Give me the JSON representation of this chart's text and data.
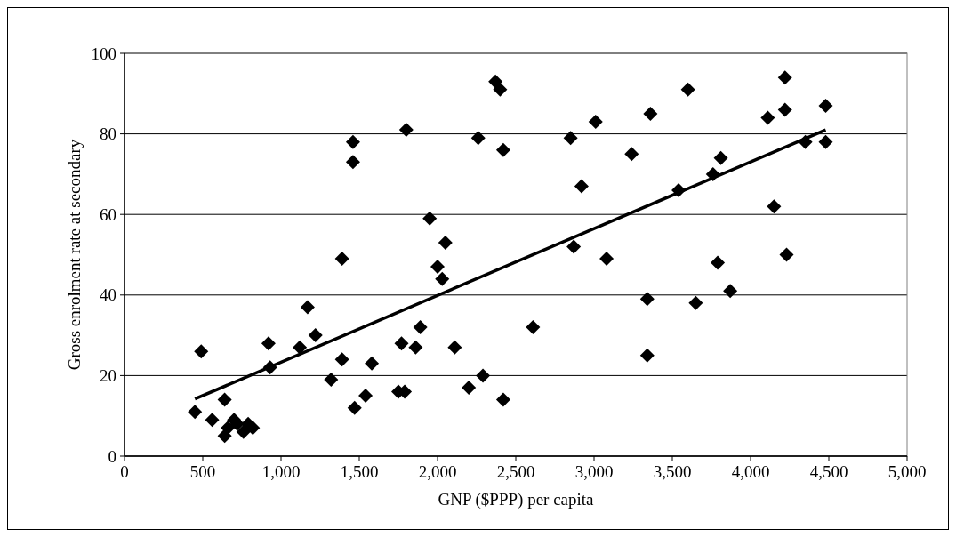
{
  "chart_data": {
    "type": "scatter",
    "xlabel": "GNP ($PPP) per capita",
    "ylabel": "Gross enrolment rate at secondary",
    "xlim": [
      0,
      5000
    ],
    "xticks": [
      {
        "value": 0,
        "label": "0"
      },
      {
        "value": 500,
        "label": "500"
      },
      {
        "value": 1000,
        "label": "1,000"
      },
      {
        "value": 1500,
        "label": "1,500"
      },
      {
        "value": 2000,
        "label": "2,000"
      },
      {
        "value": 2500,
        "label": "2,500"
      },
      {
        "value": 3000,
        "label": "3,000"
      },
      {
        "value": 3500,
        "label": "3,500"
      },
      {
        "value": 4000,
        "label": "4,000"
      },
      {
        "value": 4500,
        "label": "4,500"
      },
      {
        "value": 5000,
        "label": "5,000"
      }
    ],
    "ylim": [
      0,
      100
    ],
    "yticks": [
      0,
      20,
      40,
      60,
      80,
      100
    ],
    "grid": "y",
    "marker": "diamond",
    "series": [
      {
        "color": "#000000",
        "x": [
          450,
          490,
          560,
          640,
          640,
          660,
          700,
          720,
          760,
          790,
          820,
          920,
          930,
          1120,
          1170,
          1220,
          1320,
          1390,
          1390,
          1460,
          1460,
          1470,
          1540,
          1580,
          1750,
          1770,
          1790,
          1800,
          1860,
          1890,
          1950,
          2000,
          2030,
          2050,
          2110,
          2200,
          2260,
          2290,
          2370,
          2400,
          2420,
          2420,
          2610,
          2850,
          2870,
          2920,
          3010,
          3080,
          3240,
          3340,
          3340,
          3360,
          3600,
          3540,
          3650,
          3760,
          3790,
          3810,
          3870,
          4110,
          4150,
          4220,
          4220,
          4230,
          4350,
          4480,
          4480
        ],
        "values": [
          11,
          26,
          9,
          14,
          5,
          7,
          9,
          8,
          6,
          8,
          7,
          28,
          22,
          27,
          37,
          30,
          19,
          24,
          49,
          78,
          73,
          12,
          15,
          23,
          16,
          28,
          16,
          81,
          27,
          32,
          59,
          47,
          44,
          53,
          27,
          17,
          79,
          20,
          93,
          91,
          14,
          76,
          32,
          79,
          52,
          67,
          83,
          49,
          75,
          39,
          25,
          85,
          91,
          66,
          38,
          70,
          48,
          74,
          41,
          84,
          62,
          94,
          86,
          50,
          78,
          87,
          78
        ]
      },
      {
        "type": "line",
        "color": "#000000",
        "x": [
          450,
          4480
        ],
        "values": [
          14.2,
          81
        ],
        "marker": "none",
        "line_style": "solid"
      }
    ]
  }
}
